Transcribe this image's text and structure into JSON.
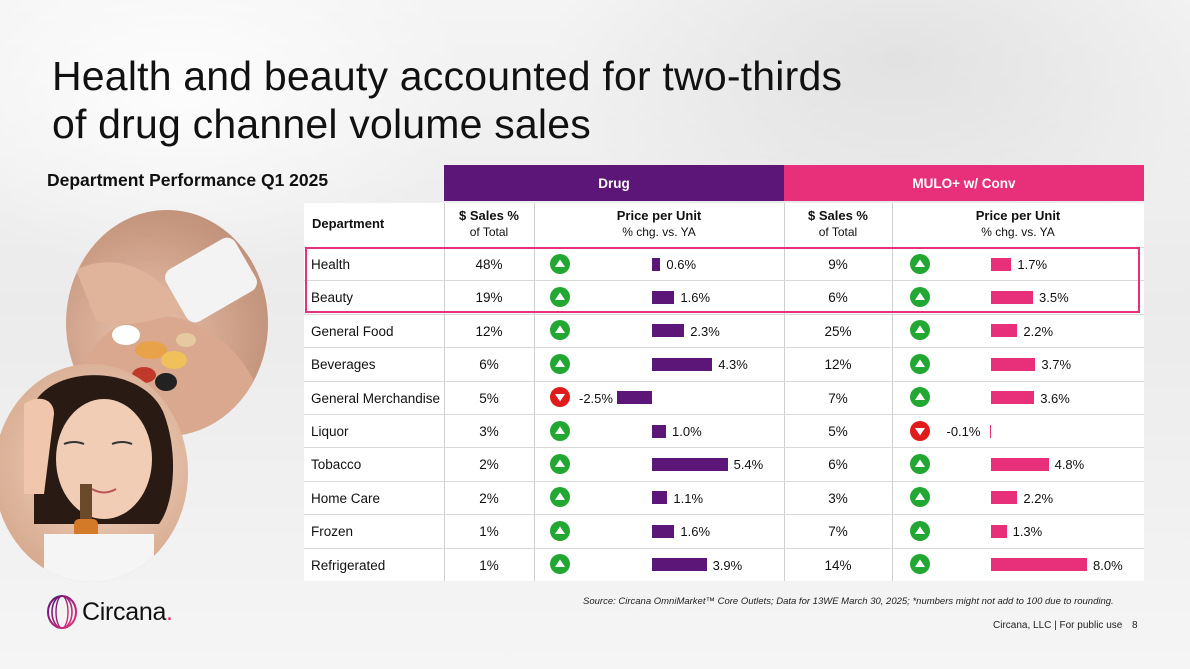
{
  "title_line1": "Health and beauty accounted for two-thirds",
  "title_line2": "of drug channel volume sales",
  "subtitle": "Department Performance Q1 2025",
  "group_headers": {
    "drug": "Drug",
    "mulo": "MULO+ w/ Conv"
  },
  "column_headers": {
    "department": "Department",
    "sales_pct": "$ Sales %",
    "of_total": "of Total",
    "ppu": "Price per Unit",
    "chg": "% chg. vs. YA"
  },
  "colors": {
    "drug": "#5b1677",
    "mulo": "#e8307a",
    "up": "#22a832",
    "down": "#e01b1b"
  },
  "chart_data": {
    "type": "table",
    "title": "Department Performance Q1 2025",
    "columns": [
      "Department",
      "Drug $ Sales % of Total",
      "Drug Price per Unit % chg. vs. YA",
      "MULO+ w/ Conv $ Sales % of Total",
      "MULO+ w/ Conv Price per Unit % chg. vs. YA"
    ],
    "rows": [
      {
        "department": "Health",
        "drug_share": "48%",
        "drug_ppu": 0.6,
        "drug_ppu_label": "0.6%",
        "mulo_share": "9%",
        "mulo_ppu": 1.7,
        "mulo_ppu_label": "1.7%"
      },
      {
        "department": "Beauty",
        "drug_share": "19%",
        "drug_ppu": 1.6,
        "drug_ppu_label": "1.6%",
        "mulo_share": "6%",
        "mulo_ppu": 3.5,
        "mulo_ppu_label": "3.5%"
      },
      {
        "department": "General Food",
        "drug_share": "12%",
        "drug_ppu": 2.3,
        "drug_ppu_label": "2.3%",
        "mulo_share": "25%",
        "mulo_ppu": 2.2,
        "mulo_ppu_label": "2.2%"
      },
      {
        "department": "Beverages",
        "drug_share": "6%",
        "drug_ppu": 4.3,
        "drug_ppu_label": "4.3%",
        "mulo_share": "12%",
        "mulo_ppu": 3.7,
        "mulo_ppu_label": "3.7%"
      },
      {
        "department": "General Merchandise",
        "drug_share": "5%",
        "drug_ppu": -2.5,
        "drug_ppu_label": "-2.5%",
        "mulo_share": "7%",
        "mulo_ppu": 3.6,
        "mulo_ppu_label": "3.6%"
      },
      {
        "department": "Liquor",
        "drug_share": "3%",
        "drug_ppu": 1.0,
        "drug_ppu_label": "1.0%",
        "mulo_share": "5%",
        "mulo_ppu": -0.1,
        "mulo_ppu_label": "-0.1%"
      },
      {
        "department": "Tobacco",
        "drug_share": "2%",
        "drug_ppu": 5.4,
        "drug_ppu_label": "5.4%",
        "mulo_share": "6%",
        "mulo_ppu": 4.8,
        "mulo_ppu_label": "4.8%"
      },
      {
        "department": "Home Care",
        "drug_share": "2%",
        "drug_ppu": 1.1,
        "drug_ppu_label": "1.1%",
        "mulo_share": "3%",
        "mulo_ppu": 2.2,
        "mulo_ppu_label": "2.2%"
      },
      {
        "department": "Frozen",
        "drug_share": "1%",
        "drug_ppu": 1.6,
        "drug_ppu_label": "1.6%",
        "mulo_share": "7%",
        "mulo_ppu": 1.3,
        "mulo_ppu_label": "1.3%"
      },
      {
        "department": "Refrigerated",
        "drug_share": "1%",
        "drug_ppu": 3.9,
        "drug_ppu_label": "3.9%",
        "mulo_share": "14%",
        "mulo_ppu": 8.0,
        "mulo_ppu_label": "8.0%"
      }
    ],
    "highlighted_rows": [
      "Health",
      "Beauty"
    ]
  },
  "source": "Source: Circana OmniMarket™ Core Outlets; Data for 13WE March 30, 2025; *numbers might not add to 100 due to rounding.",
  "footer": "Circana, LLC | For public use",
  "page_number": "8",
  "logo_text": "Circana",
  "logo_dot": "."
}
